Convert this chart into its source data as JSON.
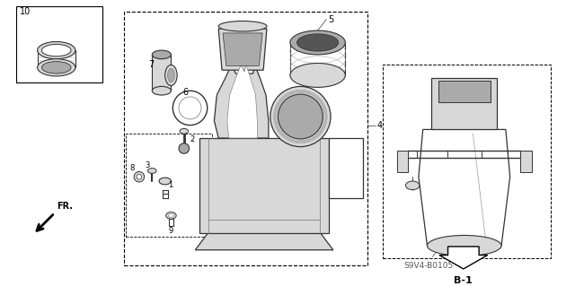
{
  "bg_color": "#ffffff",
  "fig_width": 6.4,
  "fig_height": 3.19,
  "label_b1": "B-1",
  "part_code": "S9V4-B0105",
  "fr_label": "FR.",
  "line_color": "#333333",
  "light_gray": "#d8d8d8",
  "mid_gray": "#aaaaaa",
  "dark_gray": "#555555"
}
